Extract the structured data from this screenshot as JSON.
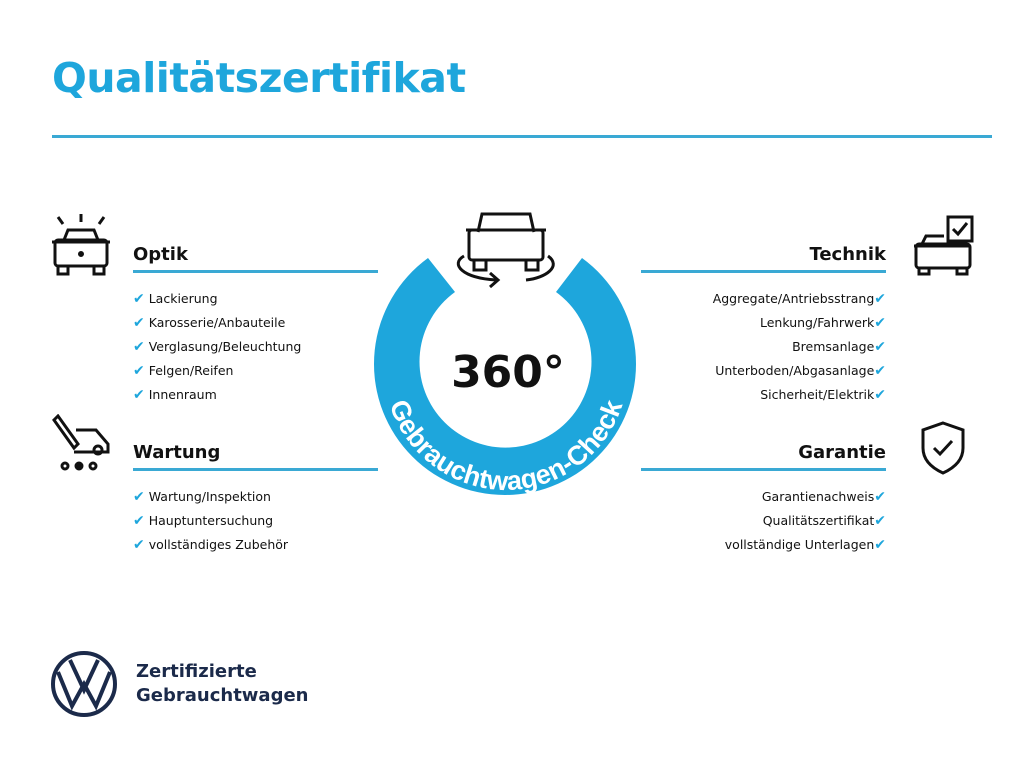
{
  "title": "Qualitätszertifikat",
  "center": {
    "degrees": "360°",
    "arc_text": "Gebrauchtwagen-Check"
  },
  "sections": {
    "optik": {
      "heading": "Optik",
      "items": [
        "Lackierung",
        "Karosserie/Anbauteile",
        "Verglasung/Beleuchtung",
        "Felgen/Reifen",
        "Innenraum"
      ]
    },
    "wartung": {
      "heading": "Wartung",
      "items": [
        "Wartung/Inspektion",
        "Hauptuntersuchung",
        "vollständiges Zubehör"
      ]
    },
    "technik": {
      "heading": "Technik",
      "items": [
        "Aggregate/Antriebsstrang",
        "Lenkung/Fahrwerk",
        "Bremsanlage",
        "Unterboden/Abgasanlage",
        "Sicherheit/Elektrik"
      ]
    },
    "garantie": {
      "heading": "Garantie",
      "items": [
        "Garantienachweis",
        "Qualitätszertifikat",
        "vollständige Unterlagen"
      ]
    }
  },
  "check_mark": "✔",
  "brand": {
    "line1": "Zertifizierte",
    "line2": "Gebrauchtwagen"
  },
  "colors": {
    "accent": "#1ea6dc",
    "ring": "#1ea6dc",
    "brand": "#1b2a4a"
  }
}
